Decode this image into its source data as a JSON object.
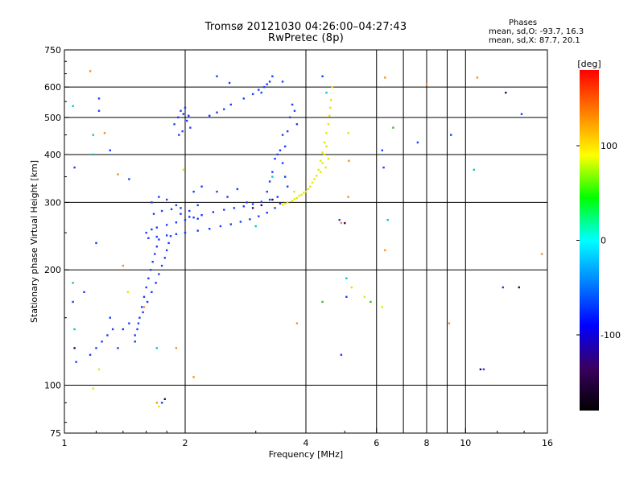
{
  "chart_data": {
    "type": "scatter",
    "title": "Tromsø 20121030 04:26:00–04:27:43",
    "subtitle": "RwPretec (8p)",
    "xlabel": "Frequency [MHz]",
    "ylabel": "Stationary phase Virtual Height [km]",
    "x_scale": "log",
    "y_scale": "log",
    "xlim": [
      1,
      16
    ],
    "ylim": [
      75,
      750
    ],
    "xticks": [
      "1",
      "2",
      "4",
      "6",
      "8",
      "10",
      "16"
    ],
    "xtick_values": [
      1,
      2,
      4,
      6,
      8,
      10,
      16
    ],
    "yticks": [
      "75",
      "100",
      "200",
      "300",
      "400",
      "500",
      "600",
      "750"
    ],
    "ytick_values": [
      75,
      100,
      200,
      300,
      400,
      500,
      600,
      750
    ],
    "grid": true,
    "colorbar": {
      "label": "[deg]",
      "range": [
        -180,
        180
      ],
      "ticks": [
        "100",
        "0",
        "-100"
      ],
      "tick_values": [
        100,
        0,
        -100
      ],
      "colors": [
        "#000000",
        "#3a0060",
        "#0000ff",
        "#0080ff",
        "#00ffff",
        "#00ff00",
        "#ffff00",
        "#ff8000",
        "#ff0000"
      ]
    },
    "phase_stats": {
      "header": "Phases",
      "o_line": "mean, sd,O: -93.7, 16.3",
      "x_line": "mean, sd,X:  87.7, 20.1"
    },
    "series": [
      {
        "name": "",
        "color": "#1a3cff",
        "phase": -100,
        "points": [
          [
            1.5,
            130
          ],
          [
            1.52,
            140
          ],
          [
            1.54,
            150
          ],
          [
            1.56,
            160
          ],
          [
            1.58,
            170
          ],
          [
            1.6,
            180
          ],
          [
            1.62,
            190
          ],
          [
            1.64,
            200
          ],
          [
            1.66,
            210
          ],
          [
            1.68,
            220
          ],
          [
            1.7,
            230
          ],
          [
            1.72,
            240
          ],
          [
            1.5,
            135
          ],
          [
            1.53,
            145
          ],
          [
            1.57,
            155
          ],
          [
            1.61,
            165
          ],
          [
            1.65,
            175
          ],
          [
            1.69,
            185
          ],
          [
            1.72,
            195
          ],
          [
            1.75,
            205
          ],
          [
            1.78,
            215
          ],
          [
            1.8,
            225
          ],
          [
            1.82,
            235
          ],
          [
            1.84,
            245
          ],
          [
            1.6,
            250
          ],
          [
            1.65,
            255
          ],
          [
            1.7,
            258
          ],
          [
            1.8,
            262
          ],
          [
            1.9,
            266
          ],
          [
            2.0,
            270
          ],
          [
            2.1,
            274
          ],
          [
            2.2,
            278
          ],
          [
            2.35,
            283
          ],
          [
            2.5,
            287
          ],
          [
            2.65,
            290
          ],
          [
            2.8,
            293
          ],
          [
            2.95,
            297
          ],
          [
            3.1,
            301
          ],
          [
            3.25,
            305
          ],
          [
            3.4,
            310
          ],
          [
            1.62,
            242
          ],
          [
            1.7,
            244
          ],
          [
            1.8,
            246
          ],
          [
            1.9,
            248
          ],
          [
            2.0,
            250
          ],
          [
            2.15,
            253
          ],
          [
            2.3,
            256
          ],
          [
            2.45,
            260
          ],
          [
            2.6,
            263
          ],
          [
            2.75,
            267
          ],
          [
            2.9,
            271
          ],
          [
            3.05,
            276
          ],
          [
            3.2,
            282
          ],
          [
            3.35,
            290
          ],
          [
            3.45,
            298
          ],
          [
            1.65,
            300
          ],
          [
            1.72,
            310
          ],
          [
            1.8,
            305
          ],
          [
            1.9,
            295
          ],
          [
            1.95,
            290
          ],
          [
            2.05,
            285
          ],
          [
            1.67,
            280
          ],
          [
            1.75,
            285
          ],
          [
            1.85,
            288
          ],
          [
            1.95,
            280
          ],
          [
            2.05,
            275
          ],
          [
            2.15,
            272
          ],
          [
            1.88,
            480
          ],
          [
            1.92,
            500
          ],
          [
            1.95,
            520
          ],
          [
            1.98,
            510
          ],
          [
            2.02,
            490
          ],
          [
            2.06,
            470
          ],
          [
            1.93,
            450
          ],
          [
            1.97,
            460
          ],
          [
            2.0,
            530
          ],
          [
            2.04,
            505
          ],
          [
            2.3,
            505
          ],
          [
            2.4,
            515
          ],
          [
            2.5,
            525
          ],
          [
            2.6,
            540
          ],
          [
            2.8,
            560
          ],
          [
            2.95,
            575
          ],
          [
            3.05,
            590
          ],
          [
            3.15,
            600
          ],
          [
            3.25,
            620
          ],
          [
            3.3,
            640
          ],
          [
            3.2,
            610
          ],
          [
            3.1,
            580
          ],
          [
            3.5,
            380
          ],
          [
            3.55,
            420
          ],
          [
            3.6,
            460
          ],
          [
            3.65,
            500
          ],
          [
            3.55,
            350
          ],
          [
            3.6,
            330
          ],
          [
            3.45,
            410
          ],
          [
            3.5,
            450
          ],
          [
            3.4,
            400
          ],
          [
            3.7,
            540
          ],
          [
            3.75,
            520
          ],
          [
            3.8,
            480
          ],
          [
            3.3,
            360
          ],
          [
            3.35,
            390
          ],
          [
            3.25,
            340
          ],
          [
            3.2,
            320
          ],
          [
            2.1,
            320
          ],
          [
            2.2,
            330
          ],
          [
            2.4,
            320
          ],
          [
            2.55,
            310
          ],
          [
            2.7,
            325
          ],
          [
            2.85,
            300
          ],
          [
            1.16,
            120
          ],
          [
            1.2,
            125
          ],
          [
            1.24,
            130
          ],
          [
            1.28,
            135
          ],
          [
            1.32,
            140
          ],
          [
            1.36,
            125
          ],
          [
            1.4,
            140
          ],
          [
            1.45,
            145
          ],
          [
            1.3,
            150
          ],
          [
            1.12,
            175
          ],
          [
            1.2,
            235
          ],
          [
            1.22,
            520
          ],
          [
            1.22,
            560
          ],
          [
            1.05,
            165
          ],
          [
            1.07,
            115
          ],
          [
            1.06,
            370
          ],
          [
            2.4,
            640
          ],
          [
            2.58,
            615
          ],
          [
            3.5,
            620
          ],
          [
            4.4,
            640
          ],
          [
            4.9,
            120
          ],
          [
            6.2,
            410
          ],
          [
            7.6,
            430
          ],
          [
            9.2,
            450
          ],
          [
            12.4,
            180
          ],
          [
            13.8,
            510
          ],
          [
            11.1,
            110
          ],
          [
            4.85,
            270
          ],
          [
            5.05,
            170
          ],
          [
            6.25,
            370
          ],
          [
            1.75,
            90
          ],
          [
            1.3,
            410
          ],
          [
            1.45,
            345
          ],
          [
            2.15,
            295
          ]
        ]
      },
      {
        "name": "",
        "color": "#e6e600",
        "phase": 100,
        "points": [
          [
            3.5,
            296
          ],
          [
            3.55,
            298
          ],
          [
            3.6,
            300
          ],
          [
            3.7,
            303
          ],
          [
            3.8,
            308
          ],
          [
            3.9,
            314
          ],
          [
            4.0,
            320
          ],
          [
            4.1,
            330
          ],
          [
            4.2,
            345
          ],
          [
            4.3,
            365
          ],
          [
            4.35,
            385
          ],
          [
            4.4,
            405
          ],
          [
            4.45,
            430
          ],
          [
            4.5,
            455
          ],
          [
            4.55,
            480
          ],
          [
            4.58,
            505
          ],
          [
            4.6,
            530
          ],
          [
            4.62,
            555
          ],
          [
            4.45,
            400
          ],
          [
            4.4,
            380
          ],
          [
            4.5,
            420
          ],
          [
            4.55,
            390
          ],
          [
            4.48,
            370
          ],
          [
            4.35,
            360
          ],
          [
            3.95,
            318
          ],
          [
            4.05,
            325
          ],
          [
            4.15,
            338
          ],
          [
            4.25,
            352
          ],
          [
            3.75,
            306
          ],
          [
            3.85,
            312
          ],
          [
            1.18,
            98
          ],
          [
            1.72,
            88
          ],
          [
            1.44,
            175
          ],
          [
            3.74,
            320
          ],
          [
            4.65,
            600
          ],
          [
            5.1,
            455
          ],
          [
            5.2,
            180
          ],
          [
            5.6,
            170
          ],
          [
            6.2,
            160
          ],
          [
            1.22,
            110
          ],
          [
            1.98,
            365
          ]
        ]
      },
      {
        "name": "",
        "color": "#ff8c1a",
        "phase": 150,
        "points": [
          [
            1.16,
            660
          ],
          [
            1.26,
            455
          ],
          [
            1.36,
            355
          ],
          [
            1.4,
            205
          ],
          [
            1.58,
            160
          ],
          [
            1.9,
            125
          ],
          [
            2.1,
            105
          ],
          [
            3.8,
            145
          ],
          [
            4.9,
            265
          ],
          [
            5.1,
            310
          ],
          [
            6.3,
            225
          ],
          [
            6.3,
            635
          ],
          [
            8.0,
            610
          ],
          [
            9.1,
            145
          ],
          [
            10.7,
            635
          ],
          [
            15.5,
            220
          ],
          [
            5.12,
            385
          ],
          [
            1.7,
            90
          ]
        ]
      },
      {
        "name": "",
        "color": "#00c8c8",
        "phase": 10,
        "points": [
          [
            1.18,
            450
          ],
          [
            1.18,
            400
          ],
          [
            1.05,
            535
          ],
          [
            1.05,
            185
          ],
          [
            1.06,
            140
          ],
          [
            1.7,
            125
          ],
          [
            4.5,
            580
          ],
          [
            5.05,
            190
          ],
          [
            6.4,
            270
          ],
          [
            3.3,
            350
          ],
          [
            3.0,
            260
          ],
          [
            10.5,
            365
          ]
        ]
      },
      {
        "name": "",
        "color": "#30c030",
        "phase": 40,
        "points": [
          [
            6.6,
            470
          ],
          [
            5.8,
            165
          ],
          [
            4.4,
            165
          ]
        ]
      },
      {
        "name": "",
        "color": "#3a0060",
        "phase": -150,
        "points": [
          [
            3.3,
            305
          ],
          [
            3.1,
            295
          ],
          [
            2.95,
            290
          ],
          [
            1.78,
            92
          ],
          [
            10.9,
            110
          ],
          [
            12.6,
            580
          ],
          [
            13.6,
            180
          ],
          [
            1.06,
            125
          ],
          [
            5.0,
            265
          ]
        ]
      }
    ]
  }
}
